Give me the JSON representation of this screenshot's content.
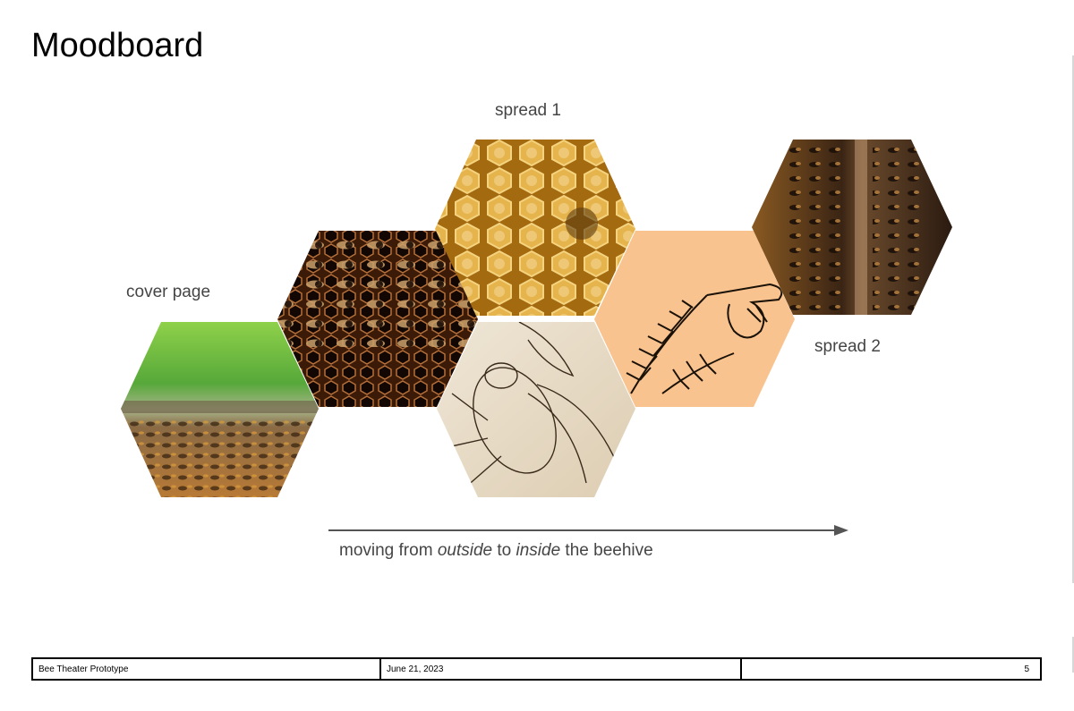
{
  "page": {
    "title": "Moodboard"
  },
  "labels": {
    "cover": "cover page",
    "spread1": "spread 1",
    "spread2": "spread 2"
  },
  "hexagons": [
    {
      "name": "hex-cover-bees-on-wood",
      "subject": "bees on wooden hive edge, green blurred background"
    },
    {
      "name": "hex-bees-on-comb",
      "subject": "bees on dark honeycomb"
    },
    {
      "name": "hex-honeycomb-larvae",
      "subject": "golden honeycomb cells with larvae"
    },
    {
      "name": "hex-cicada-sketch",
      "subject": "cicada engraving sketch"
    },
    {
      "name": "hex-fern-hand-drawing",
      "subject": "fern and hand line drawing on peach"
    },
    {
      "name": "hex-bees-on-frames",
      "subject": "bees crawling on hive frames"
    }
  ],
  "caption": {
    "part1": "moving from ",
    "outside": "outside",
    "part2": " to ",
    "inside": "inside",
    "part3": " the beehive"
  },
  "footer": {
    "project": "Bee Theater Prototype",
    "date": "June 21, 2023",
    "page_number": "5"
  },
  "colors": {
    "honey": "#d9a43a",
    "comb_dark": "#2a1408",
    "peach": "#f9c38f",
    "parchment": "#e8dcc7",
    "arrow": "#555555"
  }
}
